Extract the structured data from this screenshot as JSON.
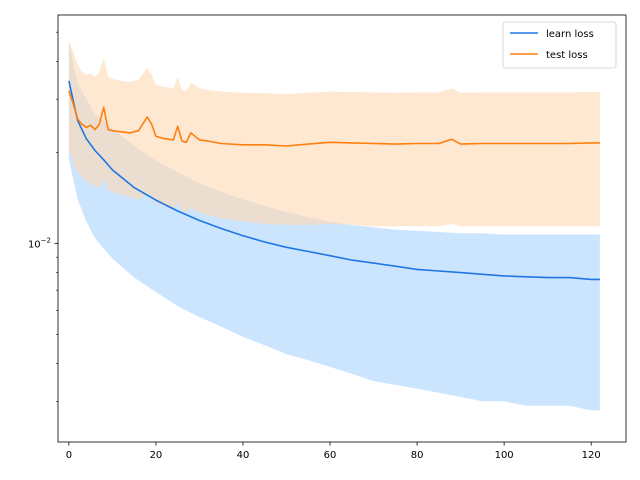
{
  "chart_data": {
    "type": "line",
    "yscale": "log",
    "xlim": [
      -2.5,
      128
    ],
    "ylim": [
      0.0022,
      0.057
    ],
    "grid": false,
    "legend_position": "top-right",
    "title": "",
    "xlabel": "",
    "ylabel": "",
    "x_ticks": [
      0,
      20,
      40,
      60,
      80,
      100,
      120
    ],
    "x_tick_labels": [
      "0",
      "20",
      "40",
      "60",
      "80",
      "100",
      "120"
    ],
    "y_major_ticks": [
      0.01
    ],
    "y_tick_labels": [
      "10",
      "−2"
    ],
    "y_minor_ticks": [
      0.003,
      0.004,
      0.005,
      0.006,
      0.007,
      0.008,
      0.009,
      0.02,
      0.03,
      0.04,
      0.05
    ],
    "colors": {
      "learn": "#1f77e4",
      "learn_band": "#bfdfff",
      "test": "#ff7f0e",
      "test_band": "#ffd9b3"
    },
    "series": [
      {
        "name": "learn loss",
        "x": [
          0,
          2,
          4,
          6,
          8,
          10,
          15,
          20,
          25,
          30,
          35,
          40,
          45,
          50,
          55,
          60,
          65,
          70,
          75,
          80,
          85,
          90,
          95,
          100,
          105,
          110,
          115,
          120,
          122
        ],
        "mean": [
          0.0345,
          0.0255,
          0.0222,
          0.0203,
          0.0189,
          0.0175,
          0.0153,
          0.0139,
          0.0128,
          0.0119,
          0.0112,
          0.0106,
          0.0101,
          0.0097,
          0.0094,
          0.0091,
          0.0088,
          0.0086,
          0.0084,
          0.0082,
          0.0081,
          0.008,
          0.0079,
          0.0078,
          0.00775,
          0.0077,
          0.0077,
          0.0076,
          0.0076
        ],
        "lower": [
          0.019,
          0.014,
          0.0118,
          0.0104,
          0.0096,
          0.0089,
          0.0077,
          0.0069,
          0.0062,
          0.0057,
          0.0053,
          0.0049,
          0.0046,
          0.0043,
          0.0041,
          0.0039,
          0.0037,
          0.0035,
          0.0034,
          0.0033,
          0.0032,
          0.0031,
          0.003,
          0.003,
          0.0029,
          0.0029,
          0.0029,
          0.0028,
          0.0028
        ],
        "upper": [
          0.046,
          0.034,
          0.03,
          0.0268,
          0.0255,
          0.024,
          0.021,
          0.0188,
          0.0172,
          0.0158,
          0.0148,
          0.014,
          0.0133,
          0.0127,
          0.0122,
          0.0118,
          0.0115,
          0.0113,
          0.0111,
          0.011,
          0.0109,
          0.0108,
          0.0108,
          0.0107,
          0.0107,
          0.0107,
          0.0107,
          0.0107,
          0.0107
        ]
      },
      {
        "name": "test loss",
        "x": [
          0,
          1,
          2,
          3,
          4,
          5,
          6,
          7,
          8,
          9,
          10,
          12,
          14,
          16,
          18,
          19,
          20,
          22,
          24,
          25,
          26,
          27,
          28,
          30,
          32,
          35,
          40,
          45,
          50,
          55,
          60,
          65,
          70,
          75,
          80,
          85,
          88,
          90,
          95,
          100,
          105,
          110,
          115,
          120,
          122
        ],
        "mean": [
          0.032,
          0.029,
          0.0258,
          0.0248,
          0.0242,
          0.0246,
          0.0238,
          0.0248,
          0.0282,
          0.0238,
          0.0236,
          0.0234,
          0.0232,
          0.0236,
          0.0262,
          0.0248,
          0.0226,
          0.0222,
          0.022,
          0.0244,
          0.0218,
          0.0216,
          0.0232,
          0.022,
          0.0218,
          0.0214,
          0.0212,
          0.0212,
          0.021,
          0.0213,
          0.0216,
          0.0215,
          0.0214,
          0.0213,
          0.0214,
          0.0214,
          0.0221,
          0.0213,
          0.0214,
          0.0214,
          0.0214,
          0.0214,
          0.0214,
          0.0215,
          0.0215
        ],
        "lower": [
          0.0205,
          0.0185,
          0.0172,
          0.0165,
          0.016,
          0.0158,
          0.0155,
          0.0152,
          0.0165,
          0.015,
          0.0148,
          0.0145,
          0.0142,
          0.014,
          0.0146,
          0.014,
          0.0136,
          0.0133,
          0.013,
          0.0136,
          0.0128,
          0.0127,
          0.0131,
          0.0126,
          0.0124,
          0.0121,
          0.0118,
          0.0116,
          0.0115,
          0.0115,
          0.0116,
          0.0115,
          0.0114,
          0.0114,
          0.0114,
          0.0114,
          0.0116,
          0.0114,
          0.0114,
          0.0114,
          0.0114,
          0.0114,
          0.0114,
          0.0114,
          0.0114
        ],
        "upper": [
          0.047,
          0.043,
          0.039,
          0.037,
          0.036,
          0.0365,
          0.0355,
          0.037,
          0.041,
          0.0355,
          0.035,
          0.0345,
          0.0342,
          0.0348,
          0.038,
          0.0362,
          0.0335,
          0.033,
          0.0326,
          0.0356,
          0.0322,
          0.032,
          0.034,
          0.0326,
          0.0322,
          0.0318,
          0.0315,
          0.0314,
          0.0312,
          0.0315,
          0.0318,
          0.0317,
          0.0316,
          0.0315,
          0.0316,
          0.0316,
          0.0325,
          0.0315,
          0.0316,
          0.0316,
          0.0316,
          0.0316,
          0.0316,
          0.0317,
          0.0317
        ]
      }
    ]
  }
}
